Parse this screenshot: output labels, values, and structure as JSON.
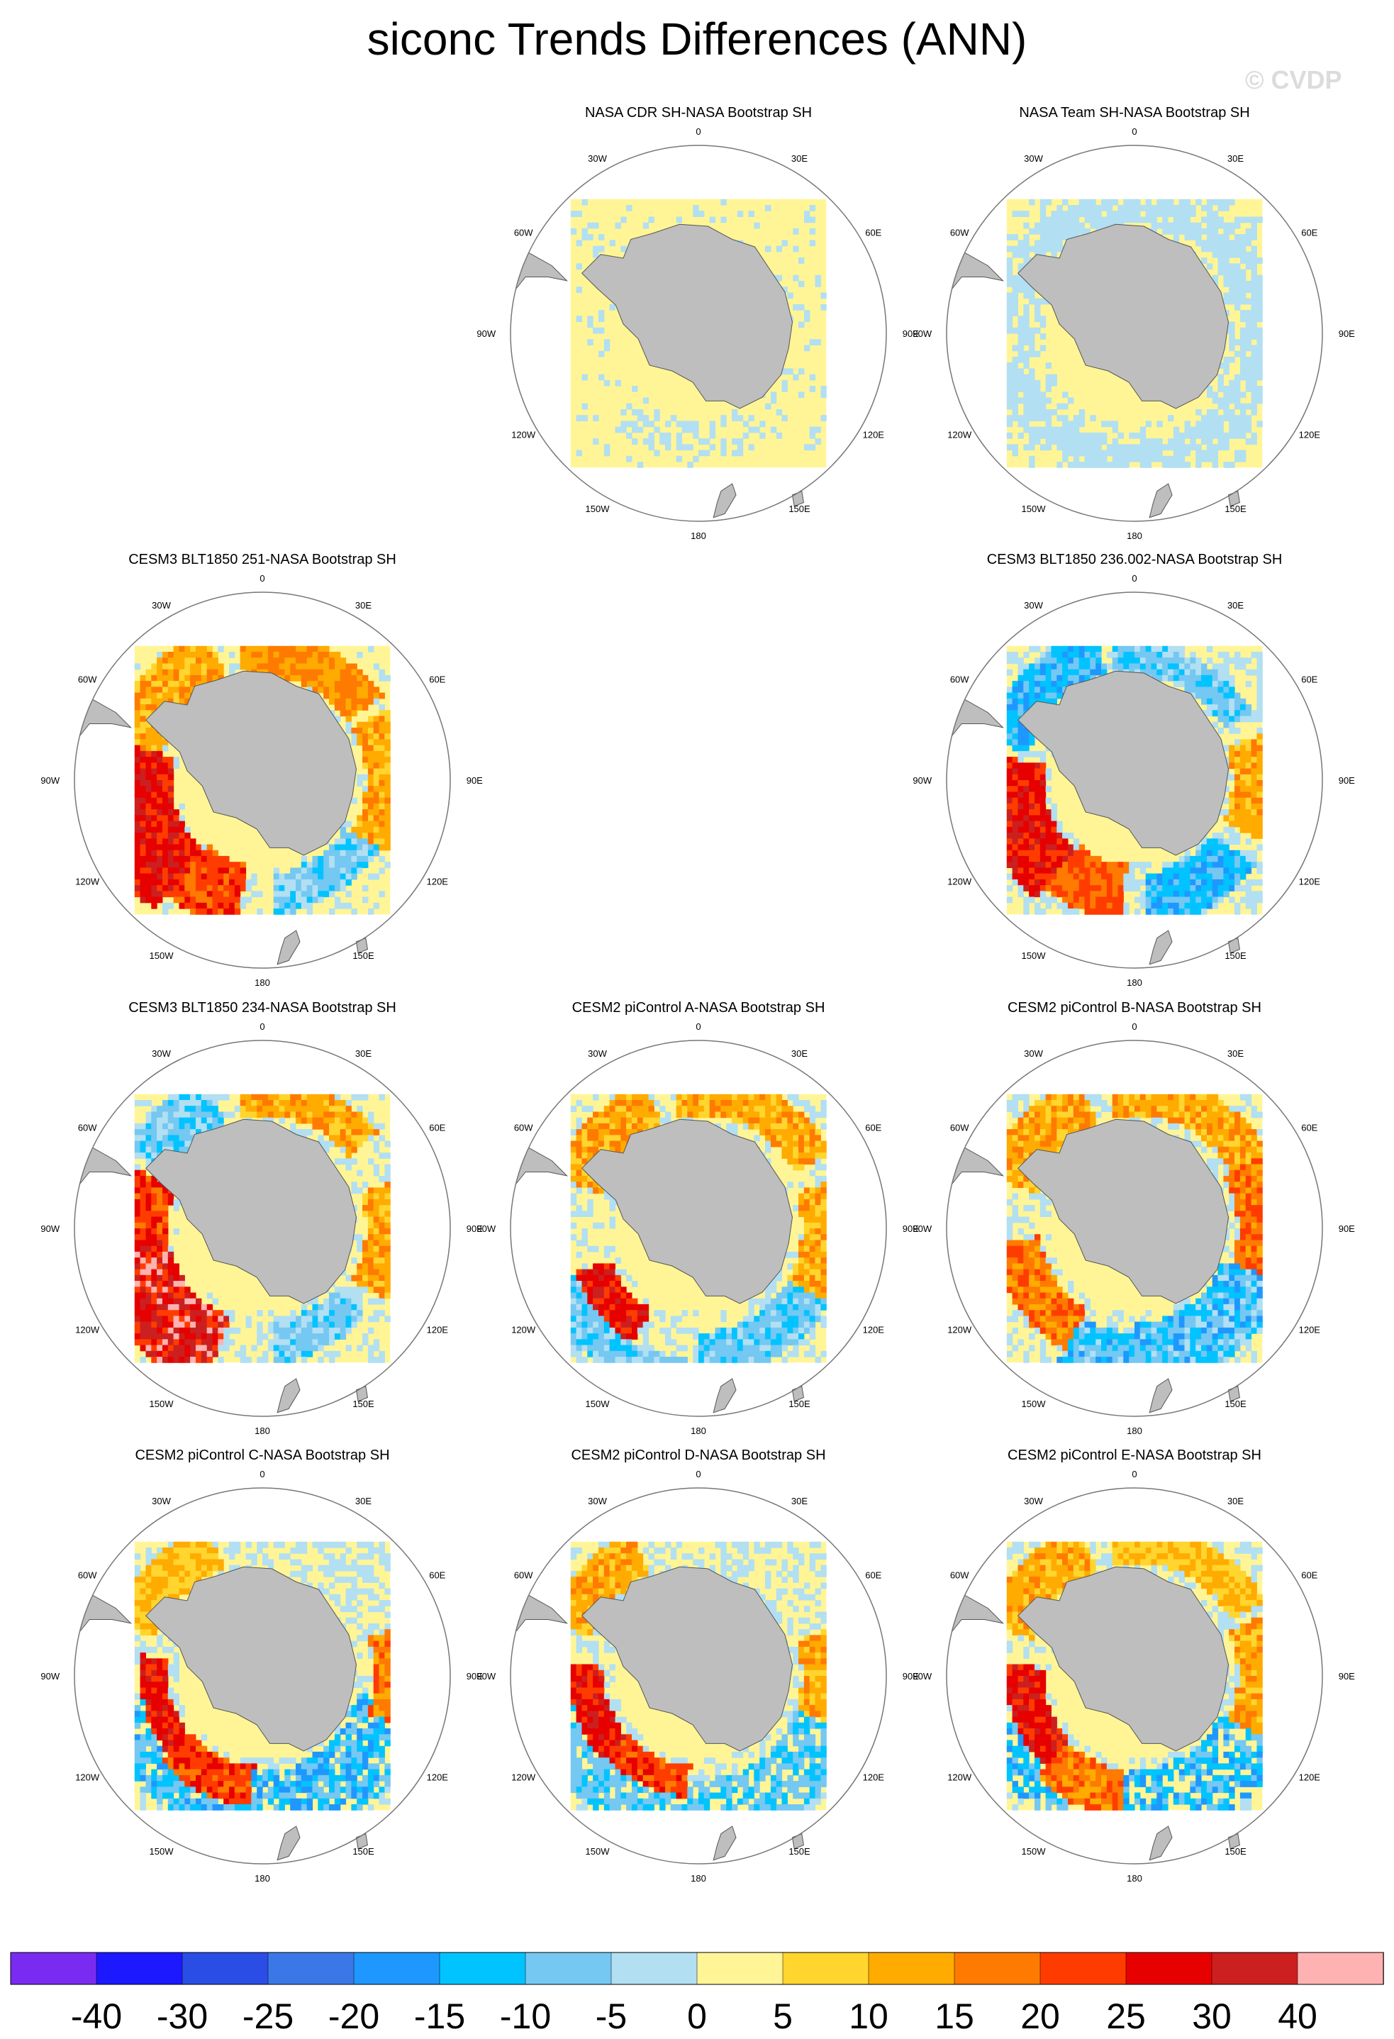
{
  "header": {
    "title": "siconc Trends Differences (ANN)",
    "watermark": "© CVDP"
  },
  "chart_data": {
    "type": "heatmap",
    "projection": "south-polar-stereographic",
    "colors": {
      "land": "#bebebe",
      "outline": "#555555"
    },
    "longitude_labels": [
      "0",
      "30E",
      "60E",
      "90E",
      "120E",
      "150E",
      "180",
      "150W",
      "120W",
      "90W",
      "60W",
      "30W"
    ],
    "colorbar": {
      "colors": [
        "#7a2bf2",
        "#1c18ff",
        "#2a4de6",
        "#3a78e8",
        "#1e98ff",
        "#00c3ff",
        "#74c8f2",
        "#b2dff2",
        "#fff596",
        "#ffd52e",
        "#ffab00",
        "#ff7a00",
        "#ff3c00",
        "#e60000",
        "#cc1f1f",
        "#ffb2b2"
      ],
      "labels": [
        "-40",
        "-30",
        "-25",
        "-20",
        "-15",
        "-10",
        "-5",
        "0",
        "5",
        "10",
        "15",
        "20",
        "25",
        "30",
        "40"
      ]
    },
    "panels": [
      {
        "title": "NASA CDR SH-NASA Bootstrap SH",
        "pattern": "cdr",
        "row": 0,
        "col": 1
      },
      {
        "title": "NASA Team SH-NASA Bootstrap SH",
        "pattern": "team",
        "row": 0,
        "col": 2
      },
      {
        "title": "CESM3 BLT1850 251-NASA Bootstrap SH",
        "pattern": "blt251",
        "row": 1,
        "col": 0
      },
      {
        "title": "CESM3 BLT1850 236.002-NASA Bootstrap SH",
        "pattern": "blt236",
        "row": 1,
        "col": 2
      },
      {
        "title": "CESM3 BLT1850 234-NASA Bootstrap SH",
        "pattern": "blt234",
        "row": 2,
        "col": 0
      },
      {
        "title": "CESM2 piControl A-NASA Bootstrap SH",
        "pattern": "picA",
        "row": 2,
        "col": 1
      },
      {
        "title": "CESM2 piControl B-NASA Bootstrap SH",
        "pattern": "picB",
        "row": 2,
        "col": 2
      },
      {
        "title": "CESM2 piControl C-NASA Bootstrap SH",
        "pattern": "picC",
        "row": 3,
        "col": 0
      },
      {
        "title": "CESM2 piControl D-NASA Bootstrap SH",
        "pattern": "picD",
        "row": 3,
        "col": 1
      },
      {
        "title": "CESM2 piControl E-NASA Bootstrap SH",
        "pattern": "picE",
        "row": 3,
        "col": 2
      }
    ]
  }
}
